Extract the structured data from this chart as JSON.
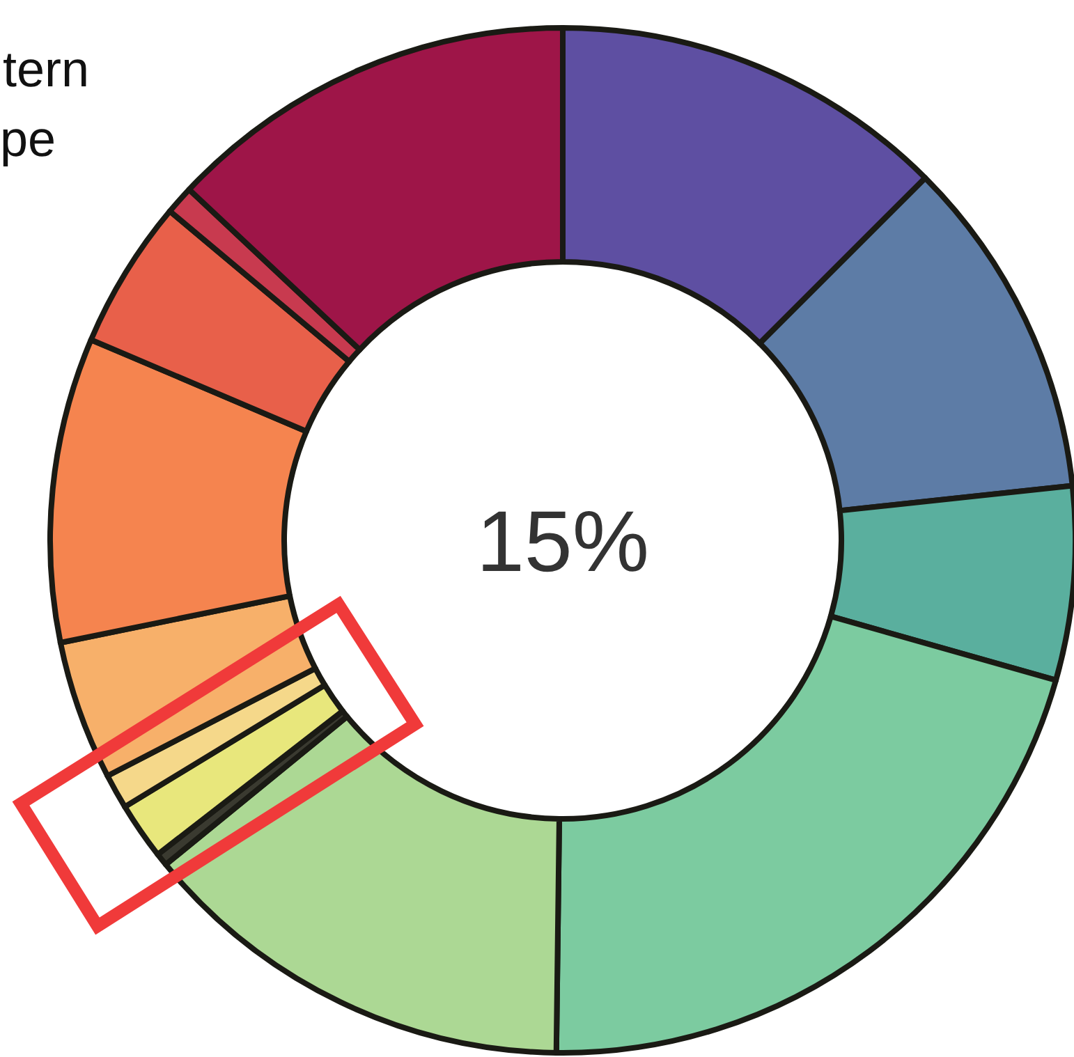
{
  "chart_data": {
    "type": "donut",
    "categories": [
      null,
      null,
      null,
      null,
      null,
      null,
      null,
      null,
      null,
      null,
      null,
      null,
      null
    ],
    "values": [
      12.5,
      10.8,
      6.1,
      20.8,
      13.9,
      0.4,
      1.8,
      1.1,
      4.4,
      9.6,
      4.7,
      0.9,
      13.0
    ],
    "colors": [
      "#5e4fa2",
      "#5d7ca6",
      "#5aaf9e",
      "#7ccba0",
      "#acd894",
      "#3a3a30",
      "#e8e77c",
      "#f5d88a",
      "#f7b06a",
      "#f5844f",
      "#e8604a",
      "#c83a4f",
      "#9e1548"
    ],
    "annotations": [
      "tern",
      "pe",
      "15%"
    ]
  }
}
